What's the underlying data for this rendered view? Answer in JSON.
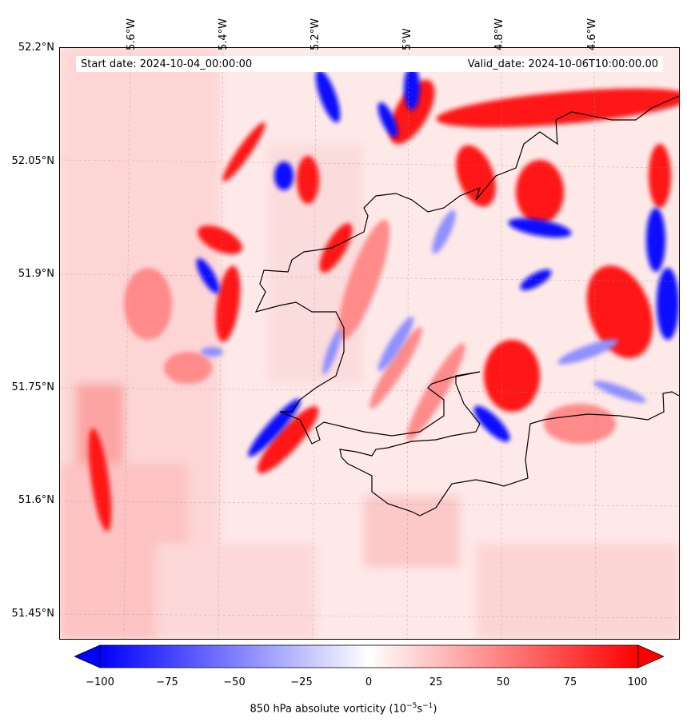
{
  "header": {
    "start_date": "Start date: 2024-10-04_00:00:00",
    "valid_date": "Valid_date: 2024-10-06T10:00:00.00"
  },
  "axes": {
    "lon_labels": [
      "5.6°W",
      "5.4°W",
      "5.2°W",
      "5°W",
      "4.8°W",
      "4.6°W"
    ],
    "lat_labels": [
      "52.2°N",
      "52.05°N",
      "51.9°N",
      "51.75°N",
      "51.6°N",
      "51.45°N"
    ]
  },
  "colorbar": {
    "ticks": [
      "−100",
      "−75",
      "−50",
      "−25",
      "0",
      "25",
      "50",
      "75",
      "100"
    ],
    "label_main": "850 hPa absolute vorticity (10",
    "label_exp1": "−5",
    "label_mid": "s",
    "label_exp2": "−1",
    "label_end": ")",
    "min_color": "#0000ff",
    "mid_color": "#ffffff",
    "max_color": "#ff0000"
  }
}
